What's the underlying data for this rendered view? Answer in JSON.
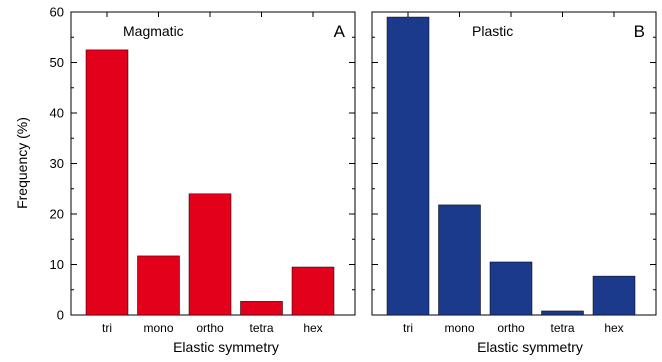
{
  "figure": {
    "shared_ylabel": "Frequency (%)"
  },
  "chart_data": [
    {
      "type": "bar",
      "panel_letter": "A",
      "title": "Magmatic",
      "xlabel": "Elastic symmetry",
      "ylabel": "Frequency (%)",
      "categories": [
        "tri",
        "mono",
        "ortho",
        "tetra",
        "hex"
      ],
      "values": [
        52.5,
        11.7,
        24.0,
        2.7,
        9.5
      ],
      "ylim": [
        0,
        60
      ],
      "yticks": [
        0,
        10,
        20,
        30,
        40,
        50,
        60
      ],
      "bar_color": "#e3001b",
      "grid": false,
      "legend": "none"
    },
    {
      "type": "bar",
      "panel_letter": "B",
      "title": "Plastic",
      "xlabel": "Elastic symmetry",
      "ylabel": "",
      "categories": [
        "tri",
        "mono",
        "ortho",
        "tetra",
        "hex"
      ],
      "values": [
        59.0,
        21.8,
        10.5,
        0.8,
        7.7
      ],
      "ylim": [
        0,
        60
      ],
      "yticks": [
        0,
        10,
        20,
        30,
        40,
        50,
        60
      ],
      "bar_color": "#1b3a8c",
      "grid": false,
      "legend": "none"
    }
  ]
}
